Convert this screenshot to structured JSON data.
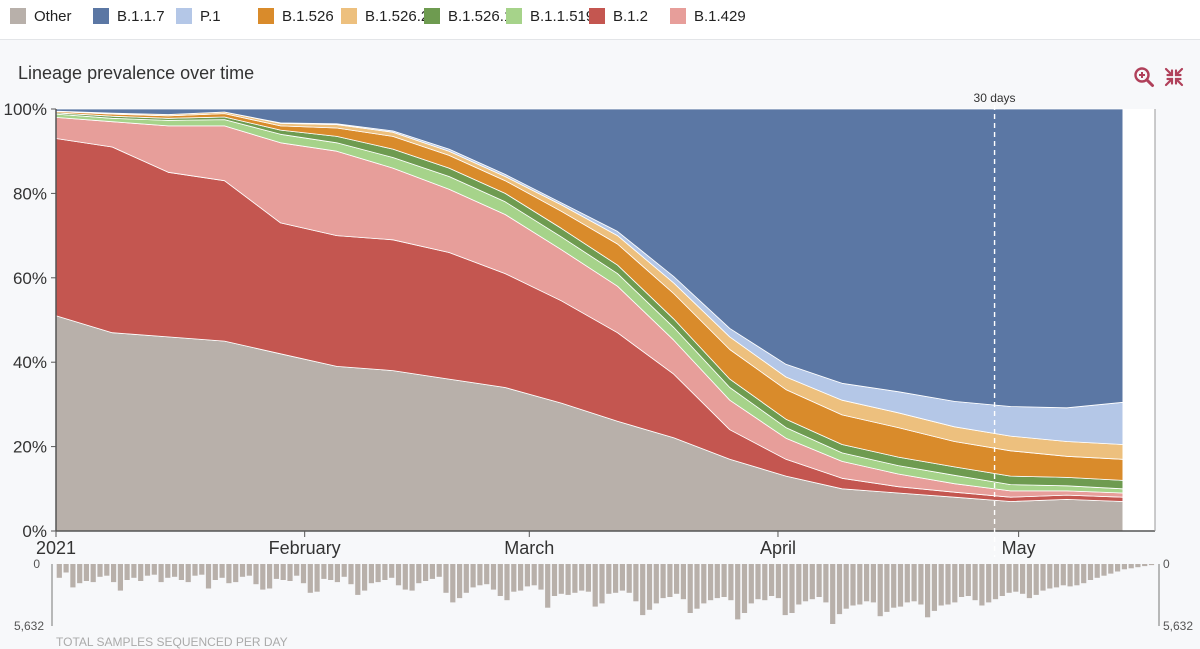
{
  "legend": [
    {
      "name": "Other",
      "color": "#b8b0aa"
    },
    {
      "name": "B.1.1.7",
      "color": "#5b77a4"
    },
    {
      "name": "P.1",
      "color": "#b4c7e7"
    },
    {
      "name": "B.1.526",
      "color": "#d98b2b"
    },
    {
      "name": "B.1.526.2",
      "color": "#edc07e"
    },
    {
      "name": "B.1.526.1",
      "color": "#6e9b50"
    },
    {
      "name": "B.1.1.519",
      "color": "#a6d38a"
    },
    {
      "name": "B.1.2",
      "color": "#c45650"
    },
    {
      "name": "B.1.429",
      "color": "#e79e9a"
    }
  ],
  "chart_title": "Lineage prevalence over time",
  "icons": {
    "zoom": "zoom-in-icon",
    "collapse": "collapse-arrows-icon"
  },
  "annotation": {
    "label": "30 days",
    "x": "2021-04-28"
  },
  "colors": {
    "accent": "#b0405a",
    "grid": "#999999"
  },
  "chart_data": {
    "type": "area",
    "stacked": true,
    "title": "Lineage prevalence over time",
    "x": [
      "2021-01-01",
      "2021-01-08",
      "2021-01-15",
      "2021-01-22",
      "2021-01-29",
      "2021-02-05",
      "2021-02-12",
      "2021-02-19",
      "2021-02-26",
      "2021-03-05",
      "2021-03-12",
      "2021-03-19",
      "2021-03-26",
      "2021-04-02",
      "2021-04-09",
      "2021-04-16",
      "2021-04-23",
      "2021-04-30",
      "2021-05-07",
      "2021-05-14"
    ],
    "ylim": [
      0,
      100
    ],
    "y_ticks": [
      "0%",
      "20%",
      "40%",
      "60%",
      "80%",
      "100%"
    ],
    "x_ticks": [
      {
        "date": "2021-01-01",
        "label": "2021"
      },
      {
        "date": "2021-02-01",
        "label": "February"
      },
      {
        "date": "2021-03-01",
        "label": "March"
      },
      {
        "date": "2021-04-01",
        "label": "April"
      },
      {
        "date": "2021-05-01",
        "label": "May"
      }
    ],
    "series": [
      {
        "name": "Other",
        "color": "#b8b0aa",
        "values": [
          51,
          47,
          46,
          45,
          42,
          39,
          38,
          36,
          34,
          30,
          26,
          22,
          17,
          13,
          10,
          9,
          8,
          7,
          7.5,
          7
        ]
      },
      {
        "name": "B.1.2",
        "color": "#c45650",
        "values": [
          42,
          44,
          39,
          38,
          31,
          31,
          31,
          30,
          27,
          24,
          21,
          15,
          7,
          4,
          2.5,
          1.5,
          1.2,
          1,
          1,
          1
        ]
      },
      {
        "name": "B.1.429",
        "color": "#e79e9a",
        "values": [
          5,
          6,
          11,
          13,
          19,
          20,
          17,
          15,
          14,
          12,
          11,
          8,
          7,
          5,
          4,
          3,
          2,
          1.5,
          1,
          1
        ]
      },
      {
        "name": "B.1.1.519",
        "color": "#a6d38a",
        "values": [
          0.8,
          0.8,
          1.3,
          1.5,
          2,
          2,
          2.5,
          3,
          3,
          3,
          3,
          3,
          3,
          2.5,
          2,
          2,
          2,
          1.5,
          1.2,
          1
        ]
      },
      {
        "name": "B.1.526.1",
        "color": "#6e9b50",
        "values": [
          0.3,
          0.5,
          0.5,
          0.6,
          1,
          1.5,
          2,
          2,
          2,
          2,
          2,
          2,
          2,
          2,
          2,
          2,
          2,
          2,
          2,
          2
        ]
      },
      {
        "name": "B.1.526",
        "color": "#d98b2b",
        "values": [
          0.3,
          0.5,
          0.6,
          0.8,
          1,
          2,
          3,
          3,
          3,
          4,
          5,
          6,
          7,
          7,
          7,
          7,
          6,
          6,
          5,
          5
        ]
      },
      {
        "name": "B.1.526.2",
        "color": "#edc07e",
        "values": [
          0.1,
          0.2,
          0.3,
          0.4,
          0.6,
          0.8,
          1,
          1,
          1,
          1.5,
          2,
          2.5,
          3,
          3,
          3.5,
          3.5,
          3.5,
          3.5,
          3.5,
          3.5
        ]
      },
      {
        "name": "P.1",
        "color": "#b4c7e7",
        "values": [
          0,
          0,
          0,
          0,
          0.1,
          0.2,
          0.3,
          0.5,
          0.5,
          0.5,
          1,
          1.5,
          2,
          3,
          4,
          5,
          6,
          7,
          8,
          10
        ]
      },
      {
        "name": "B.1.1.7",
        "color": "#5b77a4",
        "values": [
          0.5,
          1,
          1.3,
          0.7,
          3.3,
          3.5,
          5.2,
          9.5,
          15.5,
          22,
          29,
          39.5,
          52,
          60.5,
          65,
          67,
          69.3,
          70.5,
          70.8,
          69.5
        ]
      }
    ],
    "samples": {
      "label": "TOTAL SAMPLES SEQUENCED PER DAY",
      "max_label": "5,632",
      "zero_label": "0",
      "max": 5632,
      "values": [
        1300,
        800,
        2200,
        1800,
        1600,
        1700,
        1200,
        1100,
        1700,
        2500,
        1500,
        1300,
        1600,
        1100,
        1000,
        1700,
        1300,
        1200,
        1500,
        1700,
        1100,
        1000,
        2300,
        1500,
        1300,
        1800,
        1700,
        1200,
        1100,
        1900,
        2400,
        2300,
        1400,
        1500,
        1600,
        1100,
        1800,
        2700,
        2600,
        1400,
        1500,
        1700,
        1200,
        1900,
        2900,
        2500,
        1800,
        1700,
        1500,
        1300,
        2000,
        2400,
        2500,
        1800,
        1600,
        1400,
        1200,
        2700,
        3600,
        3200,
        2700,
        2200,
        2000,
        1900,
        2400,
        3000,
        3400,
        2600,
        2500,
        2100,
        2000,
        2400,
        4100,
        3000,
        2800,
        2900,
        2700,
        2500,
        2600,
        4000,
        3700,
        2800,
        2700,
        2500,
        2700,
        3500,
        4800,
        4300,
        3700,
        3200,
        3100,
        2800,
        3300,
        4600,
        4200,
        3700,
        3400,
        3200,
        3100,
        3400,
        5200,
        4600,
        3700,
        3300,
        3400,
        3000,
        3200,
        4800,
        4600,
        3800,
        3500,
        3300,
        3100,
        3600,
        5632,
        4700,
        4200,
        3900,
        3800,
        3500,
        3600,
        4900,
        4500,
        4100,
        4000,
        3600,
        3500,
        3800,
        5000,
        4400,
        3900,
        3800,
        3600,
        3100,
        3000,
        3400,
        3900,
        3600,
        3300,
        3000,
        2700,
        2600,
        2800,
        3200,
        2900,
        2500,
        2300,
        2200,
        2000,
        2100,
        2000,
        1800,
        1500,
        1300,
        1100,
        900,
        700,
        500,
        400,
        300,
        200,
        100
      ]
    }
  }
}
